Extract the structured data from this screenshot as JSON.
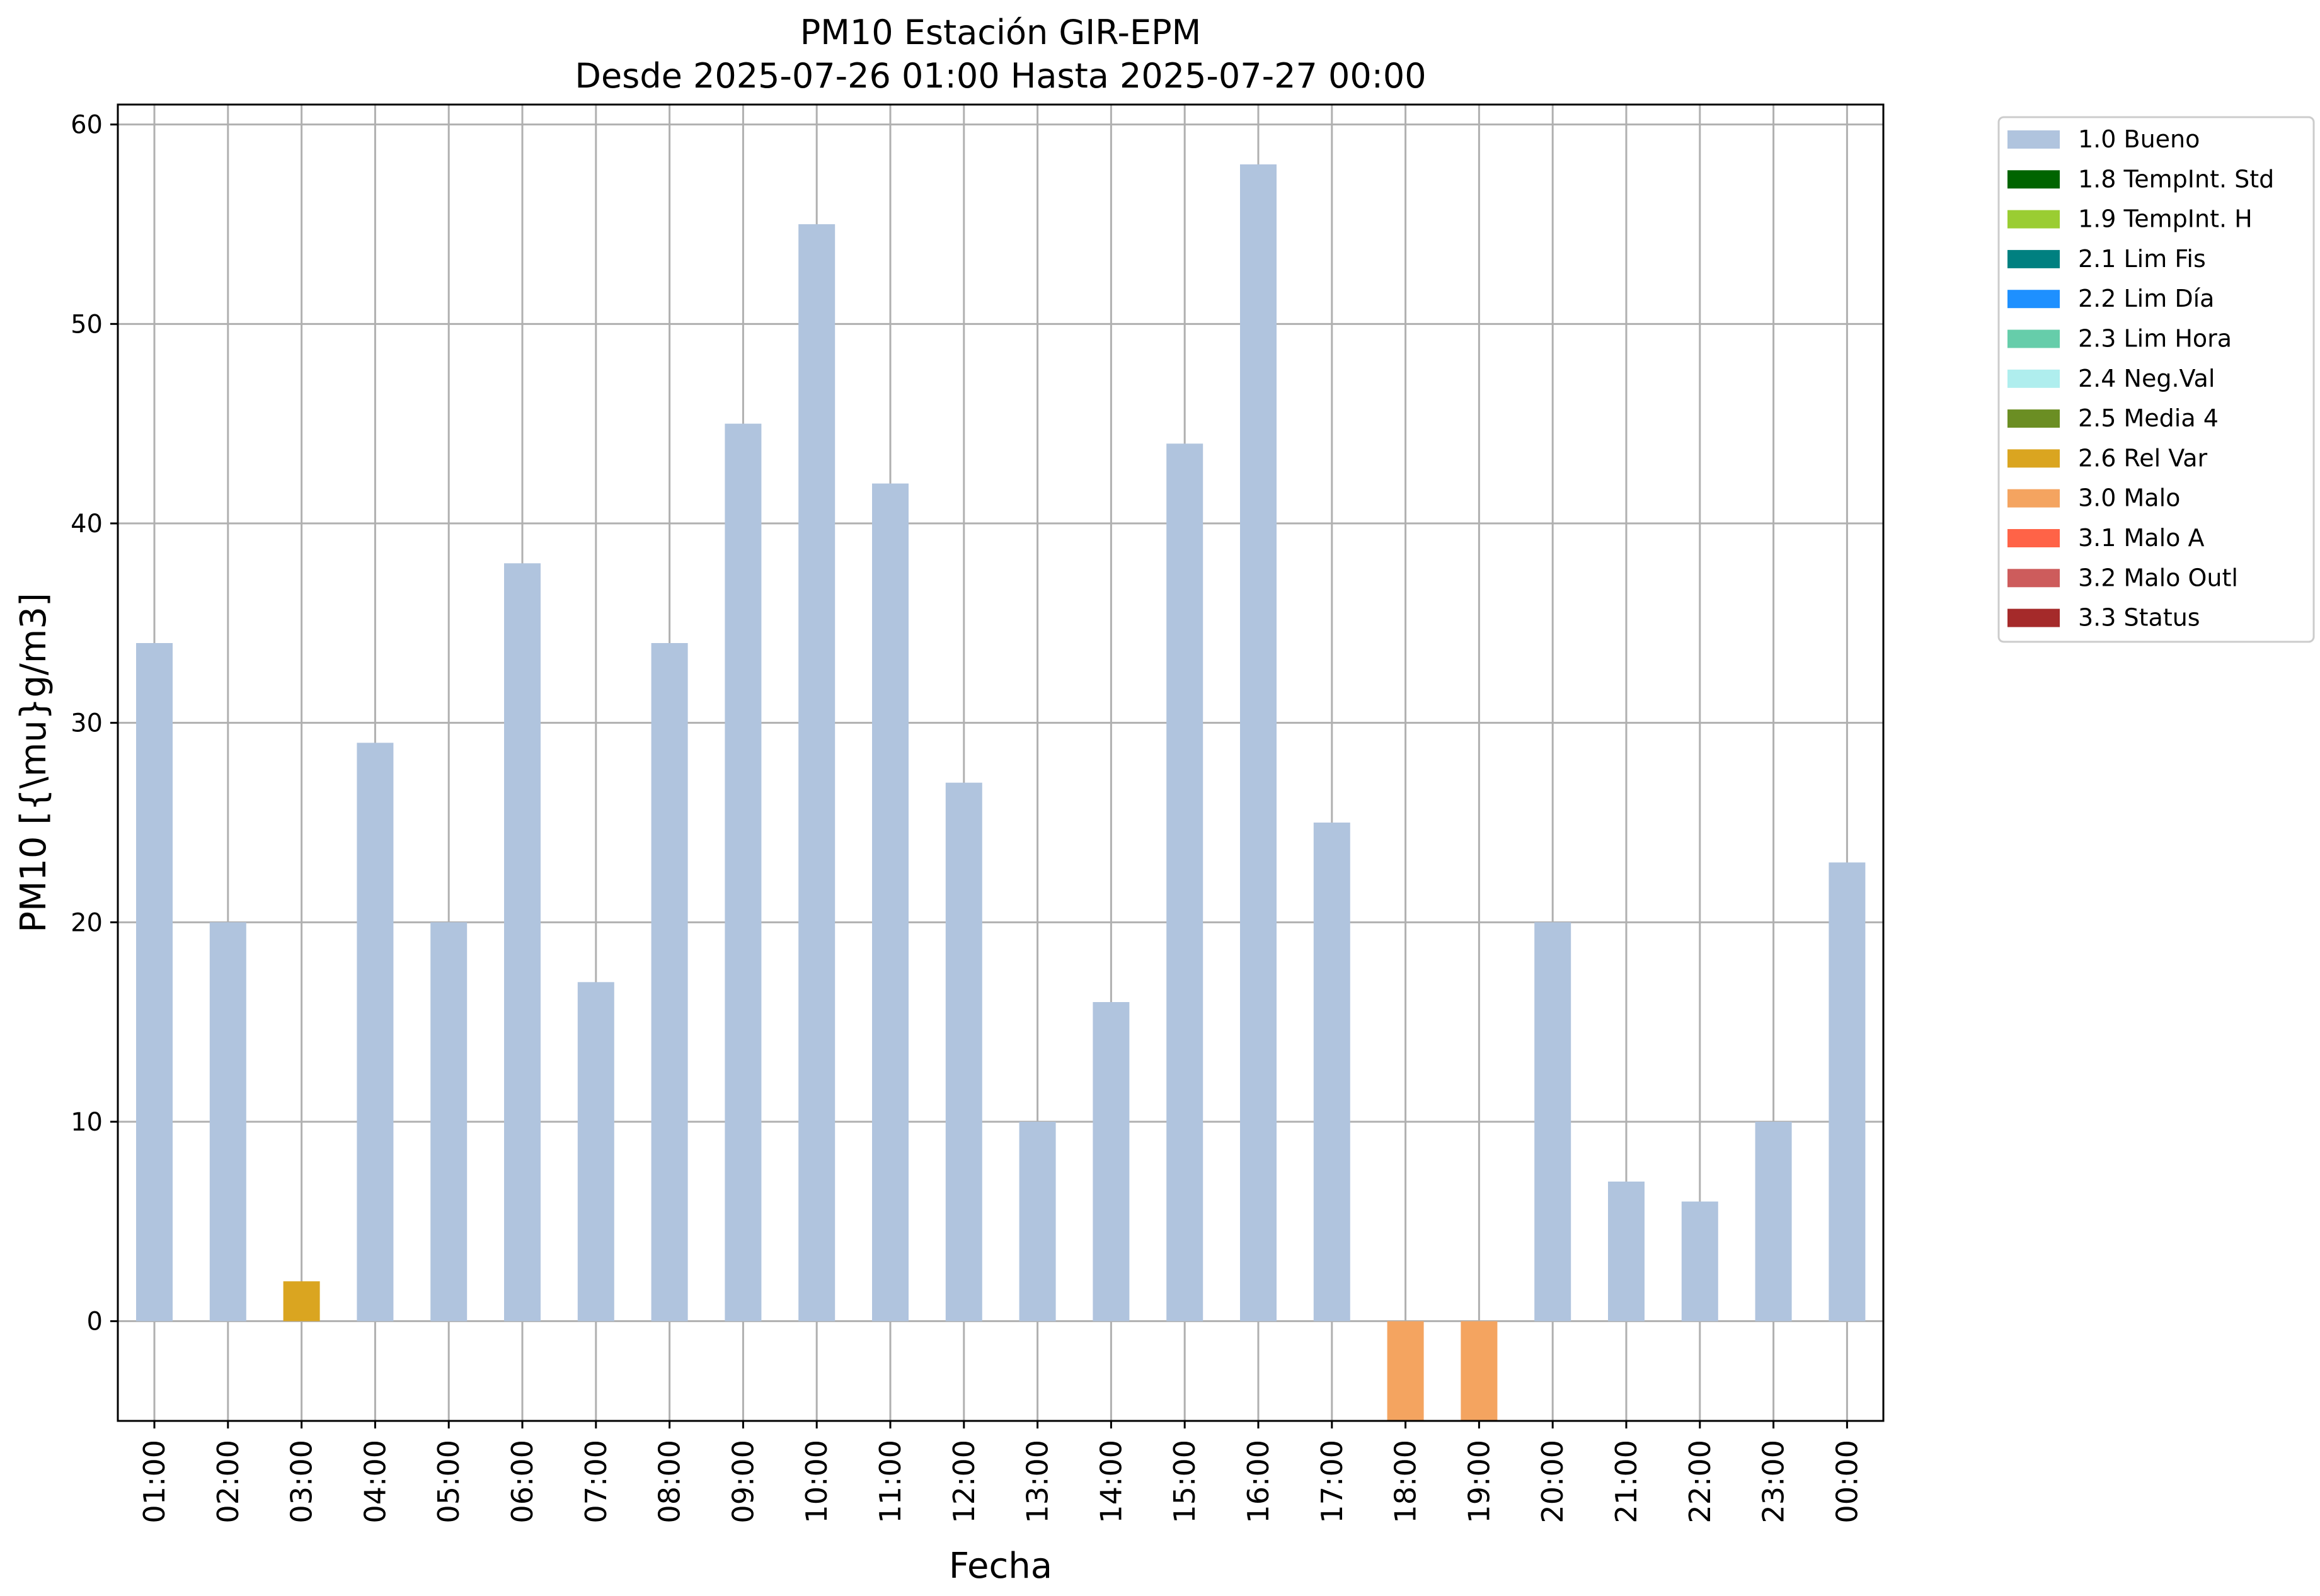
{
  "chart_data": {
    "type": "bar",
    "title": "PM10 Estación GIR-EPM",
    "subtitle": "Desde 2025-07-26 01:00 Hasta 2025-07-27 00:00",
    "xlabel": "Fecha",
    "ylabel": "PM10 [{\\mu}g/m3]",
    "ylim": [
      -5,
      61
    ],
    "yticks": [
      0,
      10,
      20,
      30,
      40,
      50,
      60
    ],
    "grid": true,
    "legend_position": "outside-top-right",
    "categories": [
      "01:00",
      "02:00",
      "03:00",
      "04:00",
      "05:00",
      "06:00",
      "07:00",
      "08:00",
      "09:00",
      "10:00",
      "11:00",
      "12:00",
      "13:00",
      "14:00",
      "15:00",
      "16:00",
      "17:00",
      "18:00",
      "19:00",
      "20:00",
      "21:00",
      "22:00",
      "23:00",
      "00:00"
    ],
    "values": [
      34,
      20,
      2,
      29,
      20,
      38,
      17,
      34,
      45,
      55,
      42,
      27,
      10,
      16,
      44,
      58,
      25,
      -5,
      -5,
      20,
      7,
      6,
      10,
      23
    ],
    "flags": [
      "1.0 Bueno",
      "1.0 Bueno",
      "2.6 Rel Var",
      "1.0 Bueno",
      "1.0 Bueno",
      "1.0 Bueno",
      "1.0 Bueno",
      "1.0 Bueno",
      "1.0 Bueno",
      "1.0 Bueno",
      "1.0 Bueno",
      "1.0 Bueno",
      "1.0 Bueno",
      "1.0 Bueno",
      "1.0 Bueno",
      "1.0 Bueno",
      "1.0 Bueno",
      "3.0 Malo",
      "3.0 Malo",
      "1.0 Bueno",
      "1.0 Bueno",
      "1.0 Bueno",
      "1.0 Bueno",
      "1.0 Bueno"
    ],
    "legend": [
      {
        "label": "1.0 Bueno",
        "color": "#b0c4de"
      },
      {
        "label": "1.8 TempInt. Std",
        "color": "#006400"
      },
      {
        "label": "1.9 TempInt. H",
        "color": "#9acd32"
      },
      {
        "label": "2.1 Lim Fis",
        "color": "#008080"
      },
      {
        "label": "2.2 Lim Día",
        "color": "#1e90ff"
      },
      {
        "label": "2.3 Lim Hora",
        "color": "#66cdaa"
      },
      {
        "label": "2.4 Neg.Val",
        "color": "#afeeee"
      },
      {
        "label": "2.5 Media 4",
        "color": "#6b8e23"
      },
      {
        "label": "2.6 Rel Var",
        "color": "#daa520"
      },
      {
        "label": "3.0 Malo",
        "color": "#f4a460"
      },
      {
        "label": "3.1 Malo A",
        "color": "#ff6347"
      },
      {
        "label": "3.2 Malo Outl",
        "color": "#cd5c5c"
      },
      {
        "label": "3.3 Status",
        "color": "#a52a2a"
      }
    ]
  }
}
